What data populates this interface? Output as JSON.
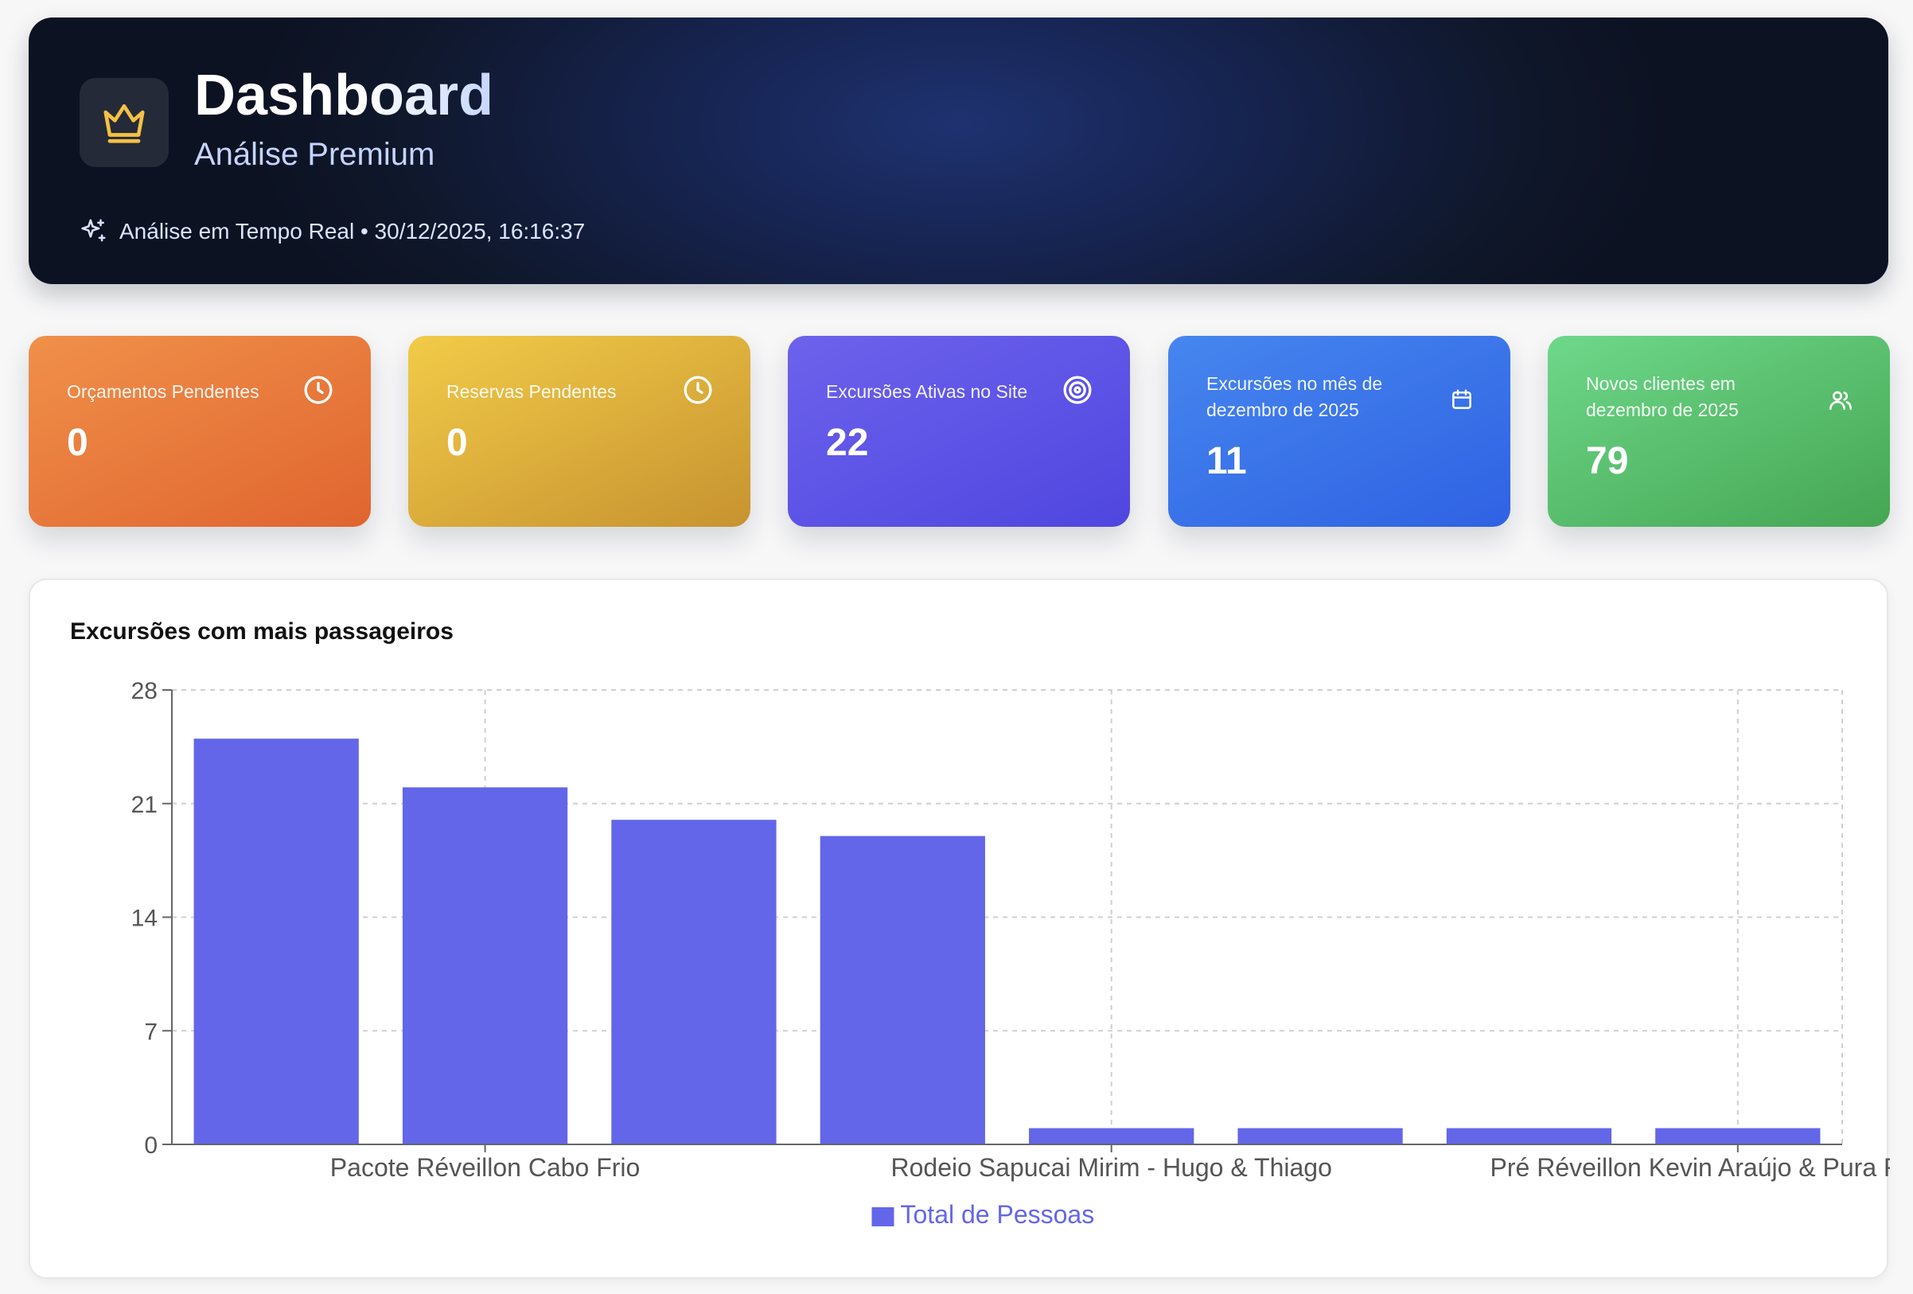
{
  "header": {
    "title": "Dashboard",
    "subtitle": "Análise Premium",
    "status": "Análise em Tempo Real • 30/12/2025, 16:16:37",
    "icons": [
      "crown-icon",
      "sparkles-icon"
    ]
  },
  "stats": [
    {
      "label": "Orçamentos Pendentes",
      "value": "0",
      "icon": "clock-icon",
      "color": "#e8773c"
    },
    {
      "label": "Reservas Pendentes",
      "value": "0",
      "icon": "clock-icon",
      "color": "#dfb23e"
    },
    {
      "label": "Excursões Ativas no Site",
      "value": "22",
      "icon": "target-icon",
      "color": "#5b54e8"
    },
    {
      "label": "Excursões no mês de dezembro de 2025",
      "value": "11",
      "icon": "calendar-icon",
      "color": "#3b74ea"
    },
    {
      "label": "Novos clientes em dezembro de 2025",
      "value": "79",
      "icon": "users-icon",
      "color": "#58bf6d"
    }
  ],
  "chart_panel": {
    "title": "Excursões com mais passageiros"
  },
  "chart_data": {
    "type": "bar",
    "title": "Excursões com mais passageiros",
    "visible_tick_labels": [
      {
        "index": 1,
        "label": "Pacote Réveillon Cabo Frio"
      },
      {
        "index": 4,
        "label": "Rodeio Sapucai Mirim - Hugo & Thiago"
      },
      {
        "index": 7,
        "label": "Pré Réveillon Kevin Araújo & Pura Resenha"
      }
    ],
    "series": [
      {
        "name": "Total de Pessoas",
        "color": "#6366e9",
        "values": [
          25,
          22,
          20,
          19,
          1,
          1,
          1,
          1
        ]
      }
    ],
    "ylim": [
      0,
      28
    ],
    "yticks": [
      0,
      7,
      14,
      21,
      28
    ],
    "grid": true,
    "legend": "bottom-center"
  }
}
